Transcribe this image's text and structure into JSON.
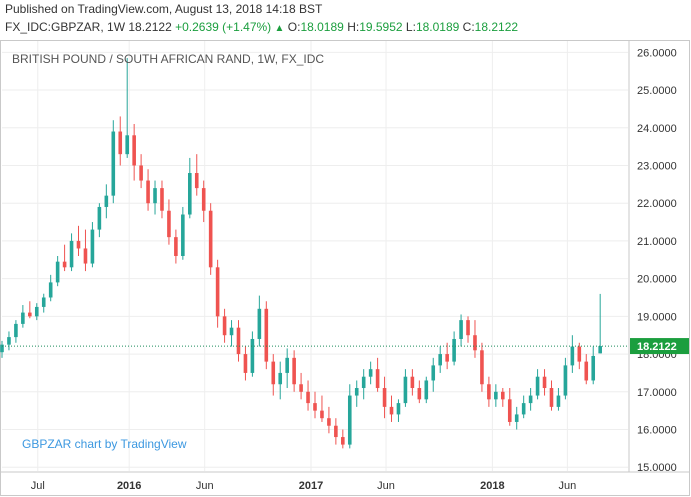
{
  "header": {
    "published": "Published on TradingView.com, August 13, 2018 14:18 BST",
    "symbol": "FX_IDC:GBPZAR, 1W",
    "last": "18.2122",
    "change": "+0.2639 (+1.47%)",
    "up_arrow": "▲",
    "open_label": "O:",
    "open": "18.0189",
    "high_label": "H:",
    "high": "19.5952",
    "low_label": "L:",
    "low": "18.0189",
    "close_label": "C:",
    "close": "18.2122"
  },
  "colors": {
    "up": "#26a69a",
    "down": "#ef5350",
    "up_text": "#1b9e3e",
    "grid": "#eeeeee",
    "dotted": "#1a8a5a",
    "last_badge": "#1b9e3e",
    "watermark": "#3c98e0"
  },
  "chart_data": {
    "type": "candlestick",
    "title": "BRITISH POUND / SOUTH AFRICAN RAND, 1W, FX_IDC",
    "watermark": "GBPZAR chart by TradingView",
    "ylim": [
      14.9,
      26.3
    ],
    "y_ticks": [
      "15.0000",
      "16.0000",
      "17.0000",
      "18.0000",
      "19.0000",
      "20.0000",
      "21.0000",
      "22.0000",
      "23.0000",
      "24.0000",
      "25.0000",
      "26.0000"
    ],
    "y_tick_values": [
      15,
      16,
      17,
      18,
      19,
      20,
      21,
      22,
      23,
      24,
      25,
      26
    ],
    "x_ticks": [
      {
        "label": "Jul",
        "x": "2015-07-01",
        "bold": false
      },
      {
        "label": "2016",
        "x": "2016-01-01",
        "bold": true
      },
      {
        "label": "Jun",
        "x": "2016-06-01",
        "bold": false
      },
      {
        "label": "2017",
        "x": "2017-01-01",
        "bold": true
      },
      {
        "label": "Jun",
        "x": "2017-06-01",
        "bold": false
      },
      {
        "label": "2018",
        "x": "2018-01-01",
        "bold": true
      },
      {
        "label": "Jun",
        "x": "2018-06-01",
        "bold": false
      }
    ],
    "x_range": [
      "2015-04-20",
      "2018-10-01"
    ],
    "last_price": 18.2122,
    "last_price_label": "18.2122",
    "candles": [
      {
        "date": "2015-04-20",
        "o": 18.05,
        "h": 18.35,
        "l": 17.9,
        "c": 18.25
      },
      {
        "date": "2015-05-04",
        "o": 18.25,
        "h": 18.6,
        "l": 18.1,
        "c": 18.45
      },
      {
        "date": "2015-05-18",
        "o": 18.45,
        "h": 18.9,
        "l": 18.3,
        "c": 18.8
      },
      {
        "date": "2015-06-01",
        "o": 18.8,
        "h": 19.3,
        "l": 18.7,
        "c": 19.1
      },
      {
        "date": "2015-06-15",
        "o": 19.1,
        "h": 19.4,
        "l": 18.95,
        "c": 19.0
      },
      {
        "date": "2015-06-29",
        "o": 19.0,
        "h": 19.35,
        "l": 18.9,
        "c": 19.25
      },
      {
        "date": "2015-07-13",
        "o": 19.25,
        "h": 19.6,
        "l": 19.1,
        "c": 19.5
      },
      {
        "date": "2015-07-27",
        "o": 19.5,
        "h": 20.1,
        "l": 19.4,
        "c": 19.9
      },
      {
        "date": "2015-08-10",
        "o": 19.9,
        "h": 20.6,
        "l": 19.8,
        "c": 20.45
      },
      {
        "date": "2015-08-24",
        "o": 20.45,
        "h": 20.9,
        "l": 20.2,
        "c": 20.3
      },
      {
        "date": "2015-09-07",
        "o": 20.3,
        "h": 21.2,
        "l": 20.2,
        "c": 21.0
      },
      {
        "date": "2015-09-21",
        "o": 21.0,
        "h": 21.4,
        "l": 20.6,
        "c": 20.8
      },
      {
        "date": "2015-10-05",
        "o": 20.8,
        "h": 21.3,
        "l": 20.2,
        "c": 20.4
      },
      {
        "date": "2015-10-19",
        "o": 20.4,
        "h": 21.5,
        "l": 20.3,
        "c": 21.3
      },
      {
        "date": "2015-11-02",
        "o": 21.3,
        "h": 22.0,
        "l": 21.1,
        "c": 21.9
      },
      {
        "date": "2015-11-16",
        "o": 21.9,
        "h": 22.5,
        "l": 21.6,
        "c": 22.2
      },
      {
        "date": "2015-11-30",
        "o": 22.2,
        "h": 24.2,
        "l": 22.0,
        "c": 23.9
      },
      {
        "date": "2015-12-14",
        "o": 23.9,
        "h": 24.3,
        "l": 23.0,
        "c": 23.3
      },
      {
        "date": "2015-12-28",
        "o": 23.3,
        "h": 25.85,
        "l": 23.2,
        "c": 23.8
      },
      {
        "date": "2016-01-11",
        "o": 23.8,
        "h": 24.1,
        "l": 22.6,
        "c": 23.0
      },
      {
        "date": "2016-01-25",
        "o": 23.0,
        "h": 23.3,
        "l": 22.4,
        "c": 22.6
      },
      {
        "date": "2016-02-08",
        "o": 22.6,
        "h": 22.9,
        "l": 21.8,
        "c": 22.0
      },
      {
        "date": "2016-02-22",
        "o": 22.0,
        "h": 22.6,
        "l": 21.7,
        "c": 22.4
      },
      {
        "date": "2016-03-07",
        "o": 22.4,
        "h": 22.6,
        "l": 21.6,
        "c": 21.8
      },
      {
        "date": "2016-03-21",
        "o": 21.8,
        "h": 22.1,
        "l": 20.9,
        "c": 21.1
      },
      {
        "date": "2016-04-04",
        "o": 21.1,
        "h": 21.3,
        "l": 20.4,
        "c": 20.6
      },
      {
        "date": "2016-04-18",
        "o": 20.6,
        "h": 21.9,
        "l": 20.5,
        "c": 21.7
      },
      {
        "date": "2016-05-02",
        "o": 21.7,
        "h": 23.2,
        "l": 21.6,
        "c": 22.8
      },
      {
        "date": "2016-05-16",
        "o": 22.8,
        "h": 23.3,
        "l": 22.2,
        "c": 22.4
      },
      {
        "date": "2016-05-30",
        "o": 22.4,
        "h": 22.6,
        "l": 21.5,
        "c": 21.8
      },
      {
        "date": "2016-06-13",
        "o": 21.8,
        "h": 22.0,
        "l": 20.1,
        "c": 20.3
      },
      {
        "date": "2016-06-27",
        "o": 20.3,
        "h": 20.5,
        "l": 18.7,
        "c": 19.0
      },
      {
        "date": "2016-07-11",
        "o": 19.0,
        "h": 19.2,
        "l": 18.3,
        "c": 18.5
      },
      {
        "date": "2016-07-25",
        "o": 18.5,
        "h": 18.9,
        "l": 18.2,
        "c": 18.7
      },
      {
        "date": "2016-08-08",
        "o": 18.7,
        "h": 18.9,
        "l": 17.8,
        "c": 18.0
      },
      {
        "date": "2016-08-22",
        "o": 18.0,
        "h": 18.2,
        "l": 17.3,
        "c": 17.5
      },
      {
        "date": "2016-09-05",
        "o": 17.5,
        "h": 18.6,
        "l": 17.4,
        "c": 18.4
      },
      {
        "date": "2016-09-19",
        "o": 18.4,
        "h": 19.55,
        "l": 18.2,
        "c": 19.2
      },
      {
        "date": "2016-10-03",
        "o": 19.2,
        "h": 19.4,
        "l": 17.6,
        "c": 17.8
      },
      {
        "date": "2016-10-17",
        "o": 17.8,
        "h": 18.0,
        "l": 16.9,
        "c": 17.2
      },
      {
        "date": "2016-10-31",
        "o": 17.2,
        "h": 17.8,
        "l": 16.8,
        "c": 17.5
      },
      {
        "date": "2016-11-14",
        "o": 17.5,
        "h": 18.15,
        "l": 17.1,
        "c": 17.9
      },
      {
        "date": "2016-11-28",
        "o": 17.9,
        "h": 18.1,
        "l": 17.0,
        "c": 17.2
      },
      {
        "date": "2016-12-12",
        "o": 17.2,
        "h": 17.5,
        "l": 16.8,
        "c": 17.0
      },
      {
        "date": "2016-12-26",
        "o": 17.0,
        "h": 17.3,
        "l": 16.5,
        "c": 16.7
      },
      {
        "date": "2017-01-09",
        "o": 16.7,
        "h": 17.0,
        "l": 16.3,
        "c": 16.5
      },
      {
        "date": "2017-01-23",
        "o": 16.5,
        "h": 16.9,
        "l": 16.2,
        "c": 16.3
      },
      {
        "date": "2017-02-06",
        "o": 16.3,
        "h": 16.6,
        "l": 15.9,
        "c": 16.1
      },
      {
        "date": "2017-02-20",
        "o": 16.1,
        "h": 16.3,
        "l": 15.6,
        "c": 15.8
      },
      {
        "date": "2017-03-06",
        "o": 15.8,
        "h": 16.0,
        "l": 15.5,
        "c": 15.6
      },
      {
        "date": "2017-03-20",
        "o": 15.6,
        "h": 17.2,
        "l": 15.5,
        "c": 16.9
      },
      {
        "date": "2017-04-03",
        "o": 16.9,
        "h": 17.3,
        "l": 16.6,
        "c": 17.1
      },
      {
        "date": "2017-04-17",
        "o": 17.1,
        "h": 17.6,
        "l": 16.8,
        "c": 17.4
      },
      {
        "date": "2017-05-01",
        "o": 17.4,
        "h": 17.8,
        "l": 17.2,
        "c": 17.6
      },
      {
        "date": "2017-05-15",
        "o": 17.6,
        "h": 17.9,
        "l": 17.0,
        "c": 17.1
      },
      {
        "date": "2017-05-29",
        "o": 17.1,
        "h": 17.4,
        "l": 16.3,
        "c": 16.6
      },
      {
        "date": "2017-06-12",
        "o": 16.6,
        "h": 16.9,
        "l": 16.2,
        "c": 16.4
      },
      {
        "date": "2017-06-26",
        "o": 16.4,
        "h": 16.8,
        "l": 16.2,
        "c": 16.7
      },
      {
        "date": "2017-07-10",
        "o": 16.7,
        "h": 17.6,
        "l": 16.6,
        "c": 17.4
      },
      {
        "date": "2017-07-24",
        "o": 17.4,
        "h": 17.6,
        "l": 16.9,
        "c": 17.1
      },
      {
        "date": "2017-08-07",
        "o": 17.1,
        "h": 17.3,
        "l": 16.7,
        "c": 16.8
      },
      {
        "date": "2017-08-21",
        "o": 16.8,
        "h": 17.4,
        "l": 16.7,
        "c": 17.3
      },
      {
        "date": "2017-09-04",
        "o": 17.3,
        "h": 17.9,
        "l": 17.0,
        "c": 17.7
      },
      {
        "date": "2017-09-18",
        "o": 17.7,
        "h": 18.2,
        "l": 17.5,
        "c": 18.0
      },
      {
        "date": "2017-10-02",
        "o": 18.0,
        "h": 18.3,
        "l": 17.6,
        "c": 17.8
      },
      {
        "date": "2017-10-16",
        "o": 17.8,
        "h": 18.6,
        "l": 17.7,
        "c": 18.4
      },
      {
        "date": "2017-10-30",
        "o": 18.4,
        "h": 19.05,
        "l": 18.2,
        "c": 18.9
      },
      {
        "date": "2017-11-13",
        "o": 18.9,
        "h": 19.0,
        "l": 18.3,
        "c": 18.5
      },
      {
        "date": "2017-11-27",
        "o": 18.5,
        "h": 18.9,
        "l": 17.9,
        "c": 18.1
      },
      {
        "date": "2017-12-11",
        "o": 18.1,
        "h": 18.3,
        "l": 17.0,
        "c": 17.2
      },
      {
        "date": "2017-12-25",
        "o": 17.2,
        "h": 17.4,
        "l": 16.6,
        "c": 16.8
      },
      {
        "date": "2018-01-08",
        "o": 16.8,
        "h": 17.2,
        "l": 16.6,
        "c": 17.0
      },
      {
        "date": "2018-01-22",
        "o": 17.0,
        "h": 17.1,
        "l": 16.6,
        "c": 16.8
      },
      {
        "date": "2018-02-05",
        "o": 16.8,
        "h": 17.1,
        "l": 16.1,
        "c": 16.2
      },
      {
        "date": "2018-02-19",
        "o": 16.2,
        "h": 16.6,
        "l": 16.0,
        "c": 16.4
      },
      {
        "date": "2018-03-05",
        "o": 16.4,
        "h": 16.9,
        "l": 16.3,
        "c": 16.7
      },
      {
        "date": "2018-03-19",
        "o": 16.7,
        "h": 17.1,
        "l": 16.5,
        "c": 16.9
      },
      {
        "date": "2018-04-02",
        "o": 16.9,
        "h": 17.6,
        "l": 16.8,
        "c": 17.4
      },
      {
        "date": "2018-04-16",
        "o": 17.4,
        "h": 17.6,
        "l": 16.9,
        "c": 17.1
      },
      {
        "date": "2018-04-30",
        "o": 17.1,
        "h": 17.3,
        "l": 16.5,
        "c": 16.6
      },
      {
        "date": "2018-05-14",
        "o": 16.6,
        "h": 17.1,
        "l": 16.5,
        "c": 16.9
      },
      {
        "date": "2018-05-28",
        "o": 16.9,
        "h": 17.9,
        "l": 16.8,
        "c": 17.7
      },
      {
        "date": "2018-06-11",
        "o": 17.7,
        "h": 18.5,
        "l": 17.5,
        "c": 18.2
      },
      {
        "date": "2018-06-25",
        "o": 18.2,
        "h": 18.3,
        "l": 17.6,
        "c": 17.8
      },
      {
        "date": "2018-07-09",
        "o": 17.8,
        "h": 18.0,
        "l": 17.2,
        "c": 17.3
      },
      {
        "date": "2018-07-23",
        "o": 17.3,
        "h": 18.2,
        "l": 17.2,
        "c": 17.95
      },
      {
        "date": "2018-08-06",
        "o": 18.0189,
        "h": 19.5952,
        "l": 18.0189,
        "c": 18.2122
      }
    ]
  }
}
